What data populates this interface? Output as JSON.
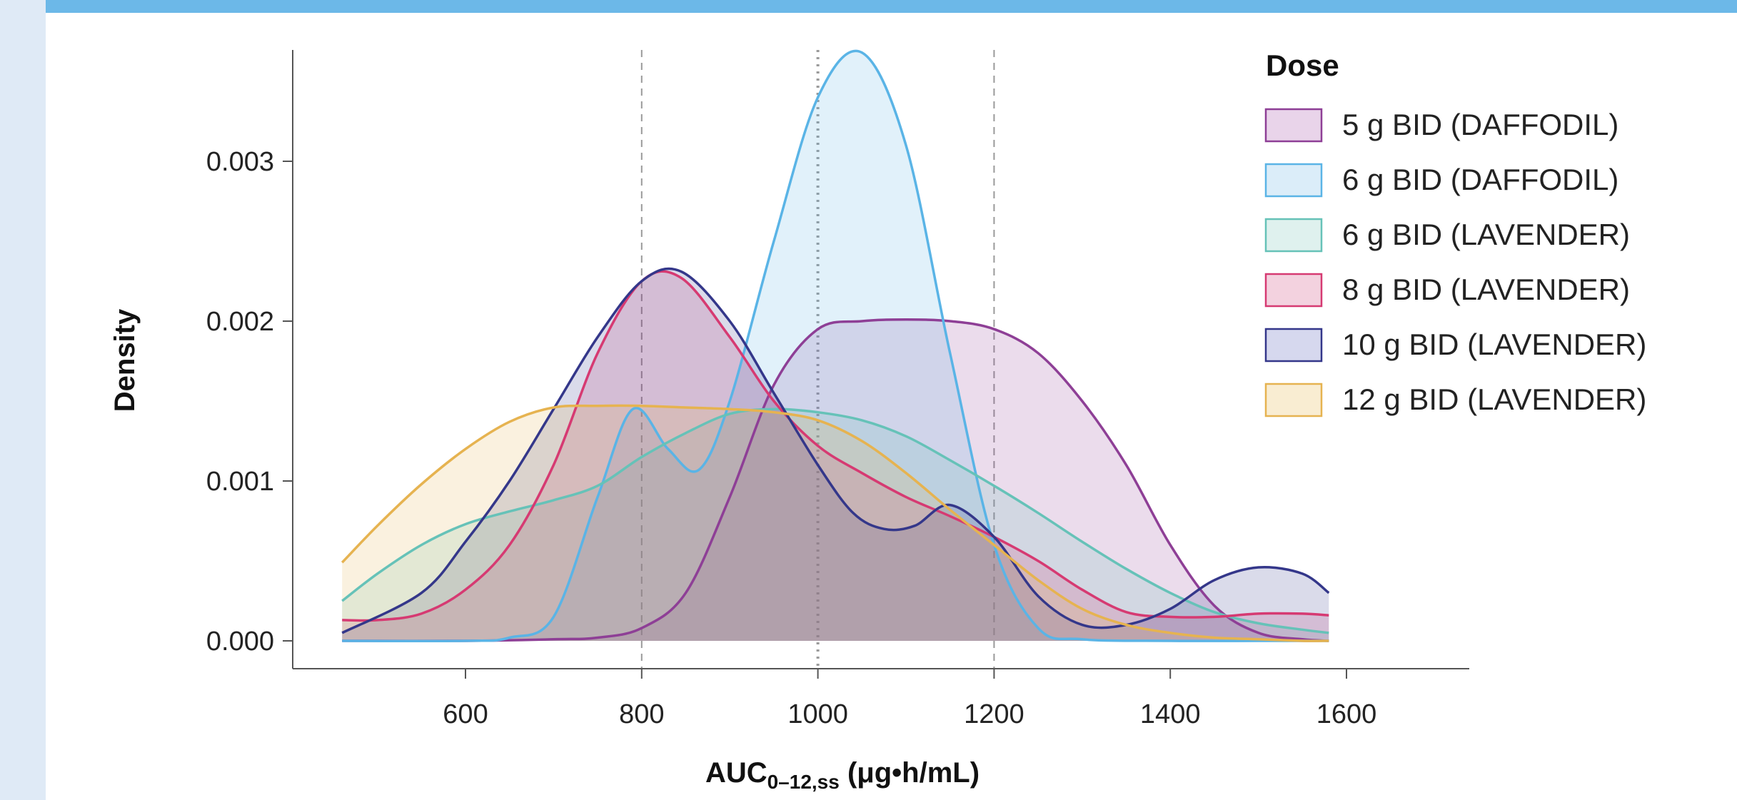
{
  "chart_data": {
    "type": "area",
    "xlabel": "AUC",
    "xlabel_sub": "0–12,ss",
    "xlabel_units": " (μg•h/mL)",
    "ylabel": "Density",
    "xlim": [
      440,
      1720
    ],
    "ylim": [
      -0.00017,
      0.00368
    ],
    "x_ticks": [
      600,
      800,
      1000,
      1200,
      1400,
      1600
    ],
    "y_ticks": [
      0.0,
      0.001,
      0.002,
      0.003
    ],
    "y_tick_labels": [
      "0.000",
      "0.001",
      "0.002",
      "0.003"
    ],
    "reference_lines": [
      {
        "x": 800,
        "style": "dashed"
      },
      {
        "x": 1000,
        "style": "dotted"
      },
      {
        "x": 1200,
        "style": "dashed"
      }
    ],
    "legend_title": "Dose",
    "legend_position": "top-right",
    "series": [
      {
        "name": "5 g BID (DAFFODIL)",
        "color": "#8e3f96",
        "fill": "#e9d4ea",
        "x": [
          460,
          600,
          700,
          750,
          800,
          850,
          900,
          950,
          1000,
          1050,
          1100,
          1150,
          1200,
          1250,
          1300,
          1350,
          1400,
          1450,
          1500,
          1550,
          1580
        ],
        "y": [
          0.0,
          0.0,
          1e-05,
          2e-05,
          8e-05,
          0.0003,
          0.0009,
          0.0016,
          0.00195,
          0.002,
          0.00201,
          0.002,
          0.00195,
          0.0018,
          0.0015,
          0.0011,
          0.0006,
          0.00022,
          5e-05,
          1e-05,
          0.0
        ]
      },
      {
        "name": "6 g BID (DAFFODIL)",
        "color": "#5ab4e6",
        "fill": "#dbedf9",
        "x": [
          460,
          600,
          650,
          700,
          750,
          790,
          830,
          865,
          900,
          950,
          1000,
          1050,
          1100,
          1150,
          1200,
          1250,
          1300,
          1400,
          1500,
          1580
        ],
        "y": [
          0.0,
          0.0,
          2e-05,
          0.00015,
          0.0009,
          0.00145,
          0.0012,
          0.00107,
          0.0015,
          0.0025,
          0.0034,
          0.00368,
          0.0031,
          0.0018,
          0.0006,
          8e-05,
          1e-05,
          0.0,
          0.0,
          0.0
        ]
      },
      {
        "name": "6 g BID (LAVENDER)",
        "color": "#66c2b8",
        "fill": "#dff1ee",
        "x": [
          460,
          500,
          550,
          600,
          650,
          700,
          750,
          800,
          850,
          900,
          950,
          1000,
          1050,
          1100,
          1150,
          1200,
          1250,
          1300,
          1350,
          1400,
          1450,
          1500,
          1550,
          1580
        ],
        "y": [
          0.00025,
          0.00042,
          0.0006,
          0.00073,
          0.00081,
          0.00088,
          0.00097,
          0.00115,
          0.0013,
          0.00142,
          0.00145,
          0.00143,
          0.00138,
          0.00128,
          0.00113,
          0.00097,
          0.0008,
          0.00062,
          0.00045,
          0.0003,
          0.00018,
          0.00011,
          7e-05,
          5e-05
        ]
      },
      {
        "name": "8 g BID (LAVENDER)",
        "color": "#d63a72",
        "fill": "#f3d2df",
        "x": [
          460,
          500,
          550,
          600,
          650,
          700,
          750,
          800,
          845,
          900,
          950,
          1000,
          1050,
          1100,
          1150,
          1200,
          1250,
          1300,
          1350,
          1400,
          1450,
          1500,
          1550,
          1580
        ],
        "y": [
          0.00013,
          0.00013,
          0.00017,
          0.00032,
          0.0006,
          0.0011,
          0.0018,
          0.00225,
          0.00227,
          0.0019,
          0.0015,
          0.00122,
          0.00105,
          0.0009,
          0.00078,
          0.00065,
          0.0005,
          0.00032,
          0.00018,
          0.00015,
          0.00015,
          0.00017,
          0.00017,
          0.00016
        ]
      },
      {
        "name": "10 g BID (LAVENDER)",
        "color": "#34378a",
        "fill": "#d6d8ee",
        "x": [
          460,
          550,
          600,
          650,
          700,
          750,
          800,
          845,
          900,
          950,
          1000,
          1040,
          1075,
          1110,
          1150,
          1200,
          1250,
          1300,
          1350,
          1400,
          1450,
          1500,
          1550,
          1580
        ],
        "y": [
          5e-05,
          0.0003,
          0.00062,
          0.001,
          0.00145,
          0.0019,
          0.00225,
          0.00231,
          0.002,
          0.00155,
          0.0011,
          0.0008,
          0.0007,
          0.00072,
          0.00085,
          0.00065,
          0.00028,
          0.0001,
          0.0001,
          0.0002,
          0.00038,
          0.00046,
          0.00042,
          0.0003
        ]
      },
      {
        "name": "12 g BID (LAVENDER)",
        "color": "#e6b350",
        "fill": "#f9edd2",
        "x": [
          460,
          500,
          550,
          600,
          650,
          700,
          750,
          800,
          850,
          900,
          950,
          1000,
          1050,
          1100,
          1150,
          1200,
          1250,
          1300,
          1350,
          1400,
          1450,
          1500,
          1550,
          1580
        ],
        "y": [
          0.00049,
          0.00072,
          0.00098,
          0.0012,
          0.00137,
          0.00146,
          0.00147,
          0.00147,
          0.00146,
          0.00145,
          0.00143,
          0.00138,
          0.00125,
          0.00105,
          0.00082,
          0.0006,
          0.00038,
          0.0002,
          0.0001,
          5e-05,
          2e-05,
          1e-05,
          0.0,
          0.0
        ]
      }
    ]
  }
}
